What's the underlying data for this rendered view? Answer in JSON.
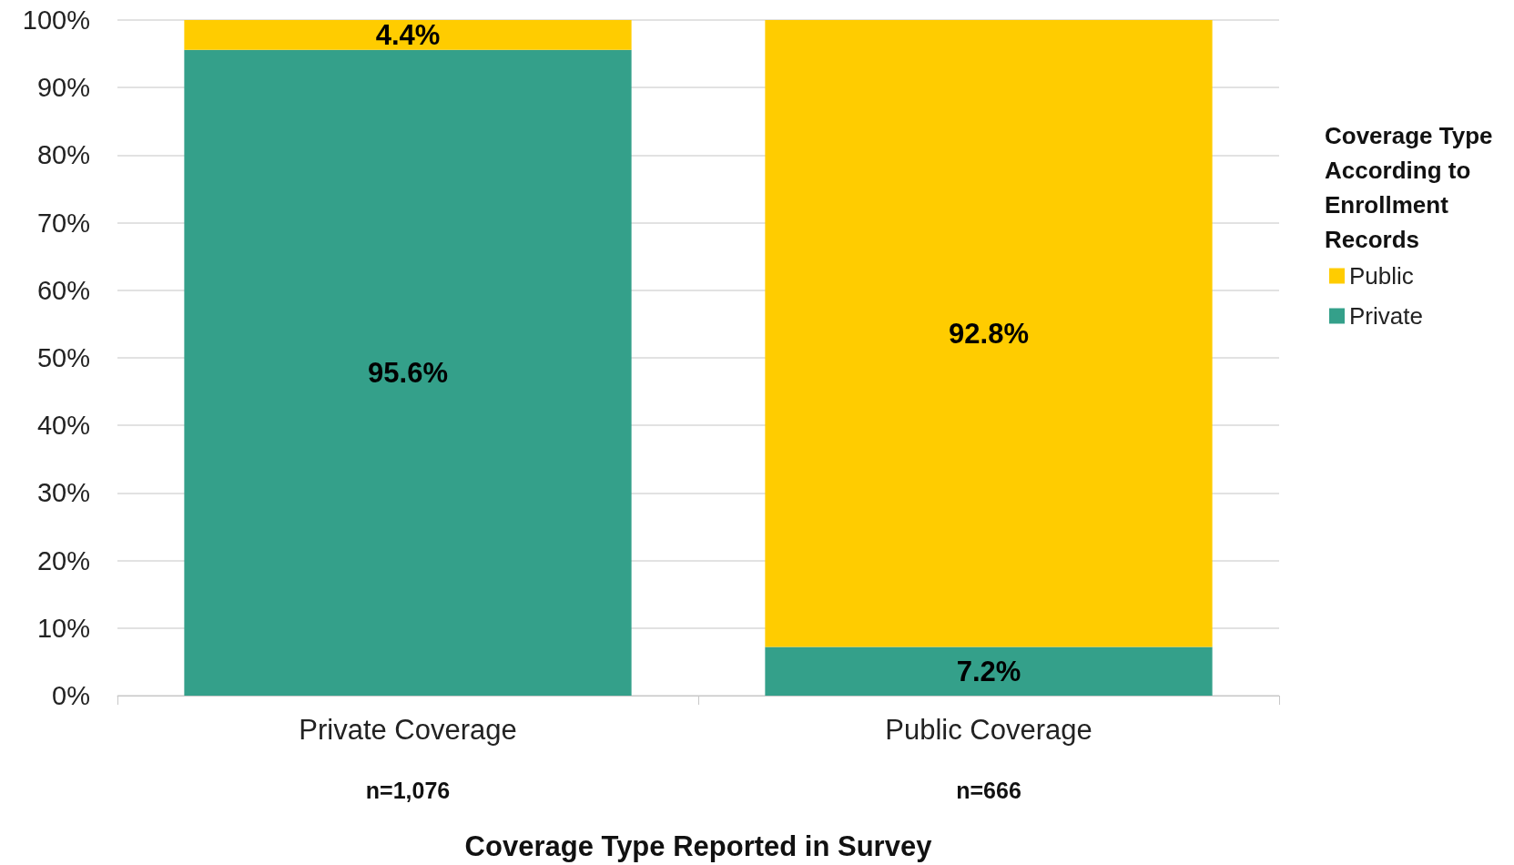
{
  "chart_data": {
    "type": "bar",
    "stacked": true,
    "xlabel": "Coverage Type Reported in Survey",
    "legend_title": "Coverage Type According to Enrollment Records",
    "categories": [
      "Private Coverage",
      "Public Coverage"
    ],
    "series": [
      {
        "name": "Private",
        "color": "#34a08a",
        "values": [
          95.6,
          7.2
        ],
        "value_labels": [
          "95.6%",
          "7.2%"
        ]
      },
      {
        "name": "Public",
        "color": "#ffcc00",
        "values": [
          4.4,
          92.8
        ],
        "value_labels": [
          "4.4%",
          "92.8%"
        ]
      }
    ],
    "annotations": [
      "n=1,076",
      "n=666"
    ],
    "ylim": [
      0,
      100
    ],
    "yticks": [
      {
        "value": 0,
        "label": "0%"
      },
      {
        "value": 10,
        "label": "10%"
      },
      {
        "value": 20,
        "label": "20%"
      },
      {
        "value": 30,
        "label": "30%"
      },
      {
        "value": 40,
        "label": "40%"
      },
      {
        "value": 50,
        "label": "50%"
      },
      {
        "value": 60,
        "label": "60%"
      },
      {
        "value": 70,
        "label": "70%"
      },
      {
        "value": 80,
        "label": "80%"
      },
      {
        "value": 90,
        "label": "90%"
      },
      {
        "value": 100,
        "label": "100%"
      }
    ],
    "grid": "y",
    "legend": "right"
  }
}
